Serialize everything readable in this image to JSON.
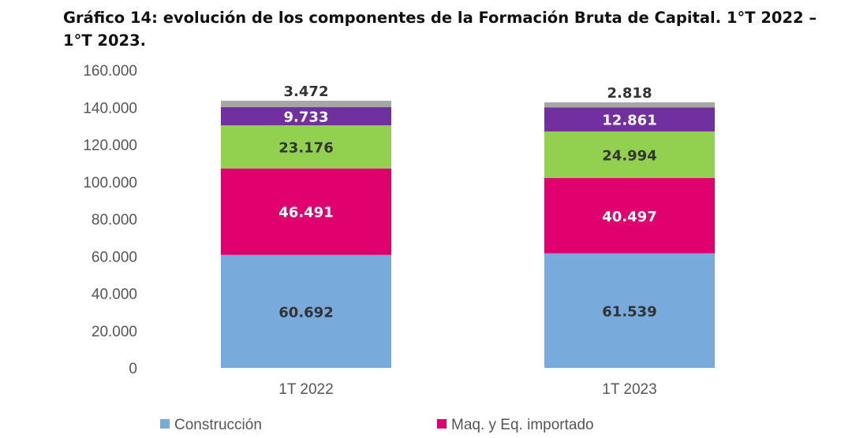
{
  "chart_data": {
    "type": "bar",
    "stacked": true,
    "title": "Gráfico 14: evolución de los componentes de la Formación Bruta de Capital. 1°T 2022 – 1°T 2023.",
    "categories": [
      "1T 2022",
      "1T 2023"
    ],
    "ylim": [
      0,
      160000
    ],
    "yticks": [
      "0",
      "20.000",
      "40.000",
      "60.000",
      "80.000",
      "100.000",
      "120.000",
      "140.000",
      "160.000"
    ],
    "ytick_values": [
      0,
      20000,
      40000,
      60000,
      80000,
      100000,
      120000,
      140000,
      160000
    ],
    "grid": false,
    "legend_position": "bottom",
    "series": [
      {
        "name": "Construcción",
        "color": "#78aadc",
        "label_color": "#333333",
        "values": [
          60692,
          61539
        ],
        "labels": [
          "60.692",
          "61.539"
        ]
      },
      {
        "name": "Maq. y Eq. importado",
        "color": "#e0006e",
        "label_color": "#ffffff",
        "values": [
          46491,
          40497
        ],
        "labels": [
          "46.491",
          "40.497"
        ]
      },
      {
        "name": "",
        "color": "#92d050",
        "label_color": "#333333",
        "values": [
          23176,
          24994
        ],
        "labels": [
          "23.176",
          "24.994"
        ]
      },
      {
        "name": "",
        "color": "#7030a0",
        "label_color": "#ffffff",
        "values": [
          9733,
          12861
        ],
        "labels": [
          "9.733",
          "12.861"
        ]
      },
      {
        "name": "",
        "color": "#a6a6a6",
        "label_color": "#333333",
        "label_outside": true,
        "values": [
          3472,
          2818
        ],
        "labels": [
          "3.472",
          "2.818"
        ]
      }
    ]
  }
}
